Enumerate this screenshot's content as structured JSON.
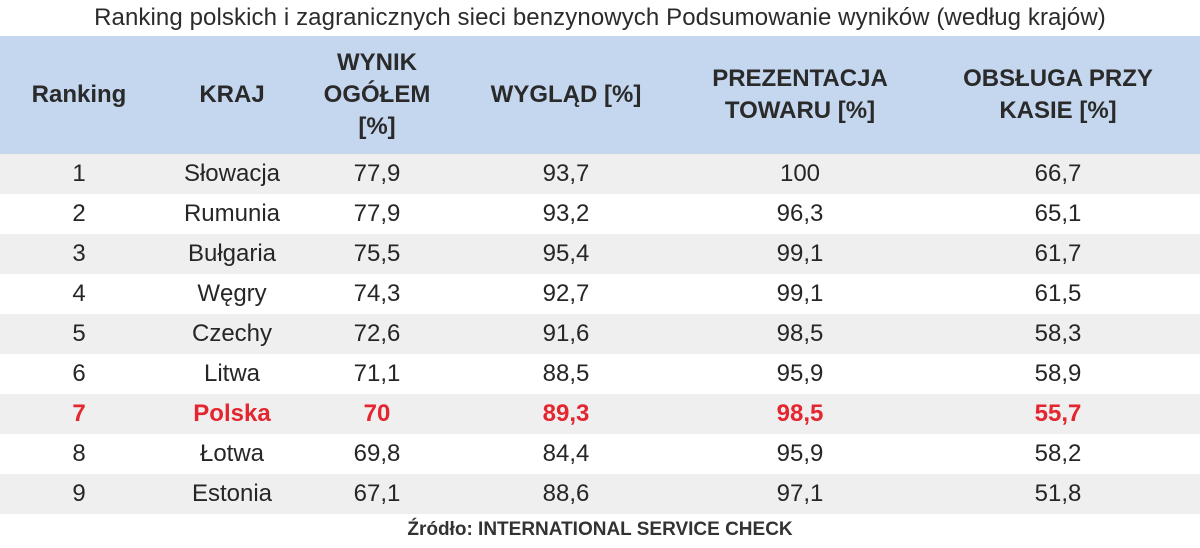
{
  "title": "Ranking polskich i zagranicznych sieci benzynowych Podsumowanie wyników (według krajów)",
  "source": "Źródło: INTERNATIONAL SERVICE CHECK",
  "highlight_color": "#e3262f",
  "header_color": "#c4d7ef",
  "chart_data": {
    "type": "table",
    "columns": [
      [
        "Ranking"
      ],
      [
        "KRAJ"
      ],
      [
        "WYNIK",
        "OGÓŁEM",
        "[%]"
      ],
      [
        "WYGLĄD [%]"
      ],
      [
        "PREZENTACJA",
        "TOWARU [%]"
      ],
      [
        "OBSŁUGA PRZY",
        "KASIE [%]"
      ]
    ],
    "rows": [
      [
        "1",
        "Słowacja",
        "77,9",
        "93,7",
        "100",
        "66,7"
      ],
      [
        "2",
        "Rumunia",
        "77,9",
        "93,2",
        "96,3",
        "65,1"
      ],
      [
        "3",
        "Bułgaria",
        "75,5",
        "95,4",
        "99,1",
        "61,7"
      ],
      [
        "4",
        "Węgry",
        "74,3",
        "92,7",
        "99,1",
        "61,5"
      ],
      [
        "5",
        "Czechy",
        "72,6",
        "91,6",
        "98,5",
        "58,3"
      ],
      [
        "6",
        "Litwa",
        "71,1",
        "88,5",
        "95,9",
        "58,9"
      ],
      [
        "7",
        "Polska",
        "70",
        "89,3",
        "98,5",
        "55,7"
      ],
      [
        "8",
        "Łotwa",
        "69,8",
        "84,4",
        "95,9",
        "58,2"
      ],
      [
        "9",
        "Estonia",
        "67,1",
        "88,6",
        "97,1",
        "51,8"
      ]
    ],
    "highlighted_row": "Polska"
  }
}
